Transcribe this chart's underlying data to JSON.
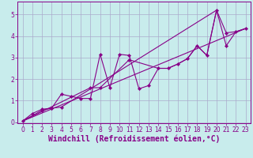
{
  "title": "",
  "xlabel": "Windchill (Refroidissement éolien,°C)",
  "ylabel": "",
  "bg_color": "#c8ecec",
  "line_color": "#880088",
  "grid_color": "#aaaacc",
  "xlim": [
    -0.5,
    23.5
  ],
  "ylim": [
    -0.05,
    5.6
  ],
  "xticks": [
    0,
    1,
    2,
    3,
    4,
    5,
    6,
    7,
    8,
    9,
    10,
    11,
    12,
    13,
    14,
    15,
    16,
    17,
    18,
    19,
    20,
    21,
    22,
    23
  ],
  "yticks": [
    0,
    1,
    2,
    3,
    4,
    5
  ],
  "series": [
    [
      0,
      0.05
    ],
    [
      1,
      0.4
    ],
    [
      2,
      0.6
    ],
    [
      2,
      0.55
    ],
    [
      3,
      0.65
    ],
    [
      3,
      0.65
    ],
    [
      4,
      0.7
    ],
    [
      4,
      1.3
    ],
    [
      5,
      1.2
    ],
    [
      6,
      1.1
    ],
    [
      7,
      1.1
    ],
    [
      7,
      1.6
    ],
    [
      8,
      1.6
    ],
    [
      8,
      3.15
    ],
    [
      9,
      1.6
    ],
    [
      10,
      3.15
    ],
    [
      11,
      3.1
    ],
    [
      11,
      2.9
    ],
    [
      12,
      1.55
    ],
    [
      13,
      1.7
    ],
    [
      14,
      2.5
    ],
    [
      15,
      2.5
    ],
    [
      16,
      2.7
    ],
    [
      17,
      2.95
    ],
    [
      18,
      3.55
    ],
    [
      19,
      3.1
    ],
    [
      20,
      5.2
    ],
    [
      21,
      3.55
    ],
    [
      21,
      4.15
    ],
    [
      22,
      4.2
    ],
    [
      23,
      4.35
    ]
  ],
  "line_segments": [
    [
      [
        0,
        0.05
      ],
      [
        1,
        0.4
      ],
      [
        2,
        0.6
      ],
      [
        3,
        0.65
      ],
      [
        4,
        0.7
      ],
      [
        20,
        5.2
      ]
    ],
    [
      [
        0,
        0.05
      ],
      [
        2,
        0.55
      ],
      [
        3,
        0.65
      ],
      [
        4,
        1.3
      ],
      [
        5,
        1.2
      ],
      [
        6,
        1.1
      ],
      [
        7,
        1.1
      ],
      [
        8,
        3.15
      ],
      [
        9,
        1.6
      ],
      [
        10,
        3.15
      ],
      [
        11,
        3.1
      ],
      [
        12,
        1.55
      ],
      [
        13,
        1.7
      ],
      [
        14,
        2.5
      ],
      [
        15,
        2.5
      ],
      [
        16,
        2.7
      ],
      [
        17,
        2.95
      ],
      [
        18,
        3.55
      ],
      [
        19,
        3.1
      ],
      [
        20,
        5.2
      ],
      [
        21,
        3.55
      ],
      [
        22,
        4.2
      ],
      [
        23,
        4.35
      ]
    ],
    [
      [
        0,
        0.05
      ],
      [
        7,
        1.6
      ],
      [
        8,
        1.6
      ],
      [
        11,
        2.9
      ],
      [
        14,
        2.5
      ],
      [
        15,
        2.5
      ],
      [
        16,
        2.7
      ],
      [
        17,
        2.95
      ],
      [
        18,
        3.55
      ],
      [
        19,
        3.1
      ],
      [
        20,
        5.2
      ],
      [
        21,
        4.15
      ],
      [
        22,
        4.2
      ],
      [
        23,
        4.35
      ]
    ],
    [
      [
        0,
        0.05
      ],
      [
        23,
        4.35
      ]
    ]
  ],
  "tick_fontsize": 5.5,
  "xlabel_fontsize": 7.0
}
